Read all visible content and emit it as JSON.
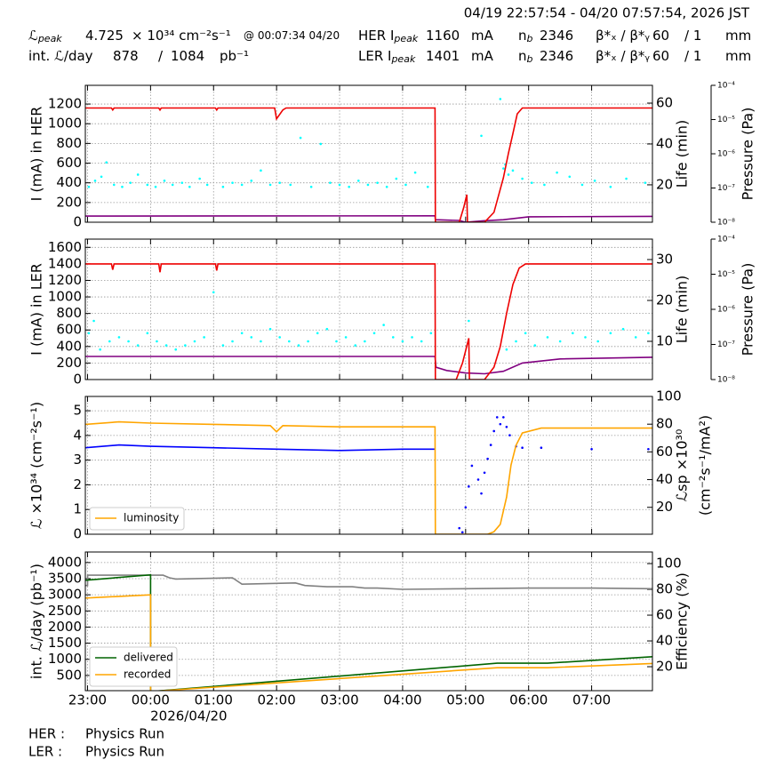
{
  "header": {
    "range": "04/19 22:57:54 - 04/20 07:57:54, 2026 JST",
    "rows": [
      [
        {
          "text": "ℒ",
          "sub": "peak"
        },
        {
          "text": "4.725"
        },
        {
          "text": "× 10³⁴ cm⁻²s⁻¹"
        },
        {
          "text": "@ 00:07:34 04/20"
        },
        {
          "text": "HER I",
          "sub": "peak"
        },
        {
          "text": "1160"
        },
        {
          "text": "mA"
        },
        {
          "text": "n",
          "sub": "b"
        },
        {
          "text": "2346"
        },
        {
          "text": "β*ₓ / β*ᵧ"
        },
        {
          "text": "60"
        },
        {
          "text": "/ 1"
        },
        {
          "text": "mm"
        }
      ],
      [
        {
          "text": "int. ℒ/day"
        },
        {
          "text": "878"
        },
        {
          "text": "/"
        },
        {
          "text": "1084"
        },
        {
          "text": "pb⁻¹"
        },
        {
          "text": "LER I",
          "sub": "peak"
        },
        {
          "text": "1401"
        },
        {
          "text": "mA"
        },
        {
          "text": "n",
          "sub": "b"
        },
        {
          "text": "2346"
        },
        {
          "text": "β*ₓ / β*ᵧ"
        },
        {
          "text": "60"
        },
        {
          "text": "/ 1"
        },
        {
          "text": "mm"
        }
      ]
    ]
  },
  "chart_data": [
    {
      "type": "line",
      "ylabel": "I (mA) in HER",
      "y2label": [
        "Life (min)"
      ],
      "y3label": "Pressure (Pa)",
      "grid": true,
      "ylim": [
        0,
        1390
      ],
      "yticks": [
        0,
        200,
        400,
        600,
        800,
        1000,
        1200
      ],
      "y2lim": [
        1.7,
        68.7
      ],
      "y2ticks": [
        20,
        40,
        60
      ],
      "y3lim": [
        1e-08,
        0.0001
      ],
      "y3scale": "log",
      "y3ticks": [
        {
          "value": 1e-08,
          "label": "10⁻⁸"
        },
        {
          "value": 1e-07,
          "label": "10⁻⁷"
        },
        {
          "value": 1e-06,
          "label": "10⁻⁶"
        },
        {
          "value": 1e-05,
          "label": "10⁻⁵"
        },
        {
          "value": 0.0001,
          "label": "10⁻⁴"
        }
      ],
      "series": [
        {
          "color": "#00ffff",
          "style": "scatter",
          "axis": "y2",
          "x": [
            0.02,
            0.12,
            0.22,
            0.3,
            0.42,
            0.55,
            0.68,
            0.8,
            0.95,
            1.08,
            1.22,
            1.35,
            1.5,
            1.62,
            1.78,
            1.9,
            2.15,
            2.3,
            2.45,
            2.6,
            2.75,
            2.9,
            3.05,
            3.22,
            3.38,
            3.55,
            3.7,
            3.85,
            4.0,
            4.15,
            4.3,
            4.45,
            4.6,
            4.75,
            4.9,
            5.05,
            5.2,
            5.4,
            6.25,
            6.55,
            6.6,
            6.63,
            6.68,
            6.75,
            6.9,
            7.05,
            7.25,
            7.45,
            7.65,
            7.85,
            8.05,
            8.3,
            8.55,
            8.85
          ],
          "values": [
            19,
            22,
            24,
            31,
            20,
            19,
            21,
            25,
            20,
            19,
            22,
            20,
            21,
            19,
            23,
            20,
            19,
            21,
            20,
            22,
            27,
            20,
            21,
            20,
            43,
            19,
            40,
            21,
            20,
            19,
            22,
            20,
            21,
            19,
            23,
            20,
            26,
            19,
            44,
            62,
            28,
            30,
            25,
            27,
            23,
            21,
            20,
            26,
            24,
            20,
            22,
            19,
            23,
            21
          ]
        },
        {
          "color": "#800080",
          "style": "line",
          "x": [
            -0.035,
            5.515,
            5.52,
            5.9,
            6.0,
            6.3,
            6.6,
            6.8,
            7.0,
            8.965
          ],
          "values": [
            62,
            65,
            25,
            18,
            0,
            15,
            25,
            40,
            55,
            60
          ]
        },
        {
          "color": "#ee0000",
          "style": "line",
          "x": [
            -0.035,
            0.38,
            0.4,
            0.42,
            1.13,
            1.15,
            1.17,
            2.03,
            2.05,
            2.07,
            2.97,
            3.0,
            3.1,
            3.15,
            5.515,
            5.52,
            5.9,
            5.97,
            6.02,
            6.03,
            6.3,
            6.45,
            6.6,
            6.68,
            6.75,
            6.82,
            6.9,
            8.965
          ],
          "values": [
            1160,
            1160,
            1140,
            1160,
            1160,
            1140,
            1160,
            1160,
            1140,
            1160,
            1160,
            1050,
            1140,
            1160,
            1160,
            0,
            0,
            150,
            280,
            0,
            0,
            100,
            450,
            700,
            900,
            1100,
            1160,
            1160
          ]
        }
      ]
    },
    {
      "type": "line",
      "ylabel": "I (mA) in LER",
      "y2label": [
        "Life (min)"
      ],
      "y3label": "Pressure (Pa)",
      "grid": true,
      "ylim": [
        0,
        1700
      ],
      "yticks": [
        0,
        200,
        400,
        600,
        800,
        1000,
        1200,
        1400,
        1600
      ],
      "y2lim": [
        0.65,
        35
      ],
      "y2ticks": [
        10,
        20,
        30
      ],
      "y3lim": [
        1e-08,
        0.0001
      ],
      "y3scale": "log",
      "y3ticks": [
        {
          "value": 1e-08,
          "label": "10⁻⁸"
        },
        {
          "value": 1e-07,
          "label": "10⁻⁷"
        },
        {
          "value": 1e-06,
          "label": "10⁻⁶"
        },
        {
          "value": 1e-05,
          "label": "10⁻⁵"
        },
        {
          "value": 0.0001,
          "label": "10⁻⁴"
        }
      ],
      "series": [
        {
          "color": "#00ffff",
          "style": "scatter",
          "axis": "y2",
          "x": [
            0.02,
            0.1,
            0.2,
            0.35,
            0.5,
            0.65,
            0.8,
            0.95,
            1.1,
            1.25,
            1.4,
            1.55,
            1.7,
            1.85,
            2.0,
            2.15,
            2.3,
            2.45,
            2.6,
            2.75,
            2.9,
            3.05,
            3.2,
            3.35,
            3.5,
            3.65,
            3.8,
            3.95,
            4.1,
            4.25,
            4.4,
            4.55,
            4.7,
            4.85,
            5.0,
            5.15,
            5.3,
            5.45,
            6.05,
            6.65,
            6.8,
            6.95,
            7.1,
            7.3,
            7.5,
            7.7,
            7.9,
            8.1,
            8.3,
            8.5,
            8.7,
            8.9
          ],
          "values": [
            12,
            15,
            8,
            10,
            11,
            10,
            9,
            12,
            10,
            9,
            8,
            9,
            10,
            11,
            22,
            9,
            10,
            12,
            11,
            10,
            13,
            11,
            10,
            9,
            10,
            12,
            13,
            10,
            11,
            9,
            10,
            12,
            14,
            11,
            10,
            11,
            10,
            12,
            15,
            8,
            10,
            12,
            9,
            11,
            10,
            12,
            11,
            10,
            12,
            13,
            11,
            12
          ]
        },
        {
          "color": "#800080",
          "style": "line",
          "x": [
            -0.035,
            5.515,
            5.53,
            5.7,
            6.0,
            6.3,
            6.6,
            6.9,
            7.5,
            8.965
          ],
          "values": [
            280,
            280,
            150,
            110,
            80,
            70,
            100,
            200,
            250,
            270
          ]
        },
        {
          "color": "#ee0000",
          "style": "line",
          "x": [
            -0.035,
            0.38,
            0.4,
            0.42,
            1.13,
            1.15,
            1.17,
            2.03,
            2.05,
            2.07,
            5.515,
            5.52,
            5.85,
            5.95,
            6.05,
            6.06,
            6.3,
            6.45,
            6.55,
            6.65,
            6.75,
            6.85,
            6.95,
            8.965
          ],
          "values": [
            1400,
            1400,
            1330,
            1400,
            1400,
            1300,
            1400,
            1400,
            1320,
            1400,
            1400,
            0,
            0,
            200,
            500,
            0,
            0,
            150,
            400,
            800,
            1150,
            1350,
            1400,
            1400
          ]
        }
      ]
    },
    {
      "type": "line",
      "ylabel": "ℒ ×10³⁴ (cm⁻²s⁻¹)",
      "y2label": [
        "ℒsp ×10³⁰",
        "(cm⁻²s⁻¹/mA²)"
      ],
      "grid": true,
      "legend": "lower left",
      "ylim": [
        0,
        5.58
      ],
      "yticks": [
        0,
        1,
        2,
        3,
        4,
        5
      ],
      "y2lim": [
        0.6,
        100
      ],
      "y2ticks": [
        20,
        40,
        60,
        80,
        100
      ],
      "series": [
        {
          "color": "#0000ff",
          "style": "line",
          "axis": "y2",
          "x": [
            -0.035,
            0.5,
            1.0,
            2.0,
            3.0,
            4.0,
            5.0,
            5.515
          ],
          "values": [
            63,
            65,
            64,
            63,
            62,
            61,
            62,
            62
          ]
        },
        {
          "color": "#0000ff",
          "style": "scatter",
          "axis": "y2",
          "x": [
            5.95,
            6.0,
            6.05,
            6.1,
            6.2,
            6.25,
            6.3,
            6.35,
            6.4,
            6.45,
            6.5,
            6.55,
            6.6,
            6.65,
            6.7,
            6.8,
            6.9,
            7.2,
            8.0,
            8.9,
            5.9
          ],
          "values": [
            2,
            20,
            35,
            50,
            40,
            30,
            45,
            55,
            65,
            75,
            85,
            80,
            85,
            78,
            72,
            64,
            63,
            63,
            62,
            62,
            5
          ]
        },
        {
          "name": "luminosity",
          "color": "#ffa500",
          "style": "line",
          "x": [
            -0.035,
            0.5,
            1.0,
            2.0,
            2.9,
            3.0,
            3.1,
            4.0,
            5.0,
            5.515,
            5.52,
            5.6,
            6.35,
            6.45,
            6.55,
            6.65,
            6.72,
            6.8,
            6.9,
            7.2,
            8.965
          ],
          "values": [
            4.45,
            4.55,
            4.5,
            4.45,
            4.4,
            4.15,
            4.4,
            4.35,
            4.35,
            4.35,
            0,
            0,
            0,
            0.1,
            0.4,
            1.5,
            2.8,
            3.6,
            4.1,
            4.3,
            4.3
          ]
        }
      ]
    },
    {
      "type": "line",
      "ylabel": "int. ℒ/day (pb⁻¹)",
      "y2label": [
        "Efficiency (%)"
      ],
      "grid": true,
      "legend": "lower left",
      "ylim": [
        28,
        4327
      ],
      "yticks": [
        500,
        1000,
        1500,
        2000,
        2500,
        3000,
        3500,
        4000
      ],
      "y2lim": [
        1.4,
        109
      ],
      "y2ticks": [
        20,
        40,
        60,
        80,
        100
      ],
      "xlim": [
        -0.035,
        8.965
      ],
      "xticks": [
        {
          "value": 0,
          "label": "23:00"
        },
        {
          "value": 1,
          "label": "00:00"
        },
        {
          "value": 2,
          "label": "01:00"
        },
        {
          "value": 3,
          "label": "02:00"
        },
        {
          "value": 4,
          "label": "03:00"
        },
        {
          "value": 5,
          "label": "04:00"
        },
        {
          "value": 6,
          "label": "05:00"
        },
        {
          "value": 7,
          "label": "06:00"
        },
        {
          "value": 8,
          "label": "07:00"
        }
      ],
      "xsublabel": "2026/04/20",
      "series": [
        {
          "color": "#808080",
          "style": "line",
          "axis": "y2",
          "x": [
            -0.035,
            0,
            0.001,
            1.2,
            1.3,
            1.4,
            2.3,
            2.45,
            3.3,
            3.45,
            3.8,
            4.2,
            4.4,
            4.6,
            5.0,
            6.0,
            7.0,
            8.0,
            8.965
          ],
          "values": [
            83,
            83,
            91,
            91,
            89,
            88,
            89,
            84,
            85,
            83,
            82,
            82,
            81,
            81,
            80,
            80.5,
            81,
            81,
            80.5
          ]
        },
        {
          "name": "delivered",
          "color": "#006400",
          "style": "line",
          "x": [
            -0.035,
            1,
            1.001,
            6.5,
            7.3,
            8.965
          ],
          "values": [
            3450,
            3620,
            0,
            880,
            880,
            1080
          ]
        },
        {
          "name": "recorded",
          "color": "#ffa500",
          "style": "line",
          "x": [
            -0.035,
            1,
            1.001,
            6.5,
            7.3,
            8.965
          ],
          "values": [
            2900,
            3000,
            0,
            740,
            740,
            870
          ]
        }
      ]
    }
  ],
  "footer": [
    {
      "label": "HER :",
      "value": "Physics Run"
    },
    {
      "label": "LER :",
      "value": "Physics Run"
    }
  ]
}
